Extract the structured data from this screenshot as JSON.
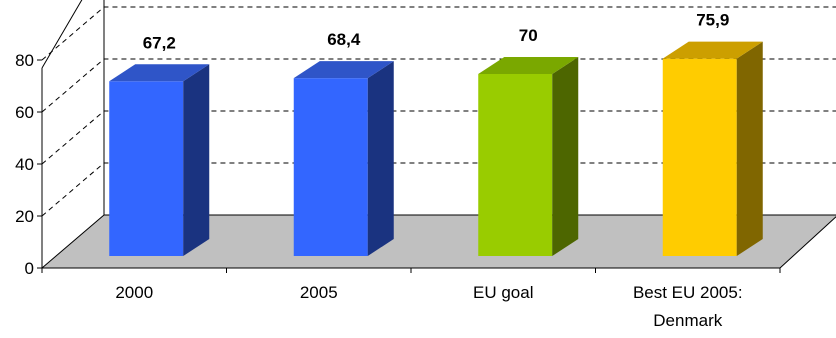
{
  "chart_data": {
    "type": "bar",
    "categories": [
      "2000",
      "2005",
      "EU goal",
      "Best EU 2005:\nDenmark"
    ],
    "values": [
      67.2,
      68.4,
      70,
      75.9
    ],
    "value_labels": [
      "67,2",
      "68,4",
      "70",
      "75,9"
    ],
    "title": "",
    "xlabel": "",
    "ylabel": "",
    "ylim": [
      0,
      80
    ],
    "yticks": [
      0,
      20,
      40,
      60,
      80
    ],
    "grid": true,
    "legend": "none",
    "style": "3d",
    "colors": {
      "bar_fronts": [
        "#3366ff",
        "#3366ff",
        "#99cc00",
        "#ffcc00"
      ],
      "bar_sides": [
        "#1a3380",
        "#1a3380",
        "#4d6600",
        "#806600"
      ],
      "bar_tops": [
        "#2f55c8",
        "#2f55c8",
        "#7aa800",
        "#cc9f00"
      ],
      "floor": "#c0c0c0",
      "gridline": "#000000"
    }
  }
}
